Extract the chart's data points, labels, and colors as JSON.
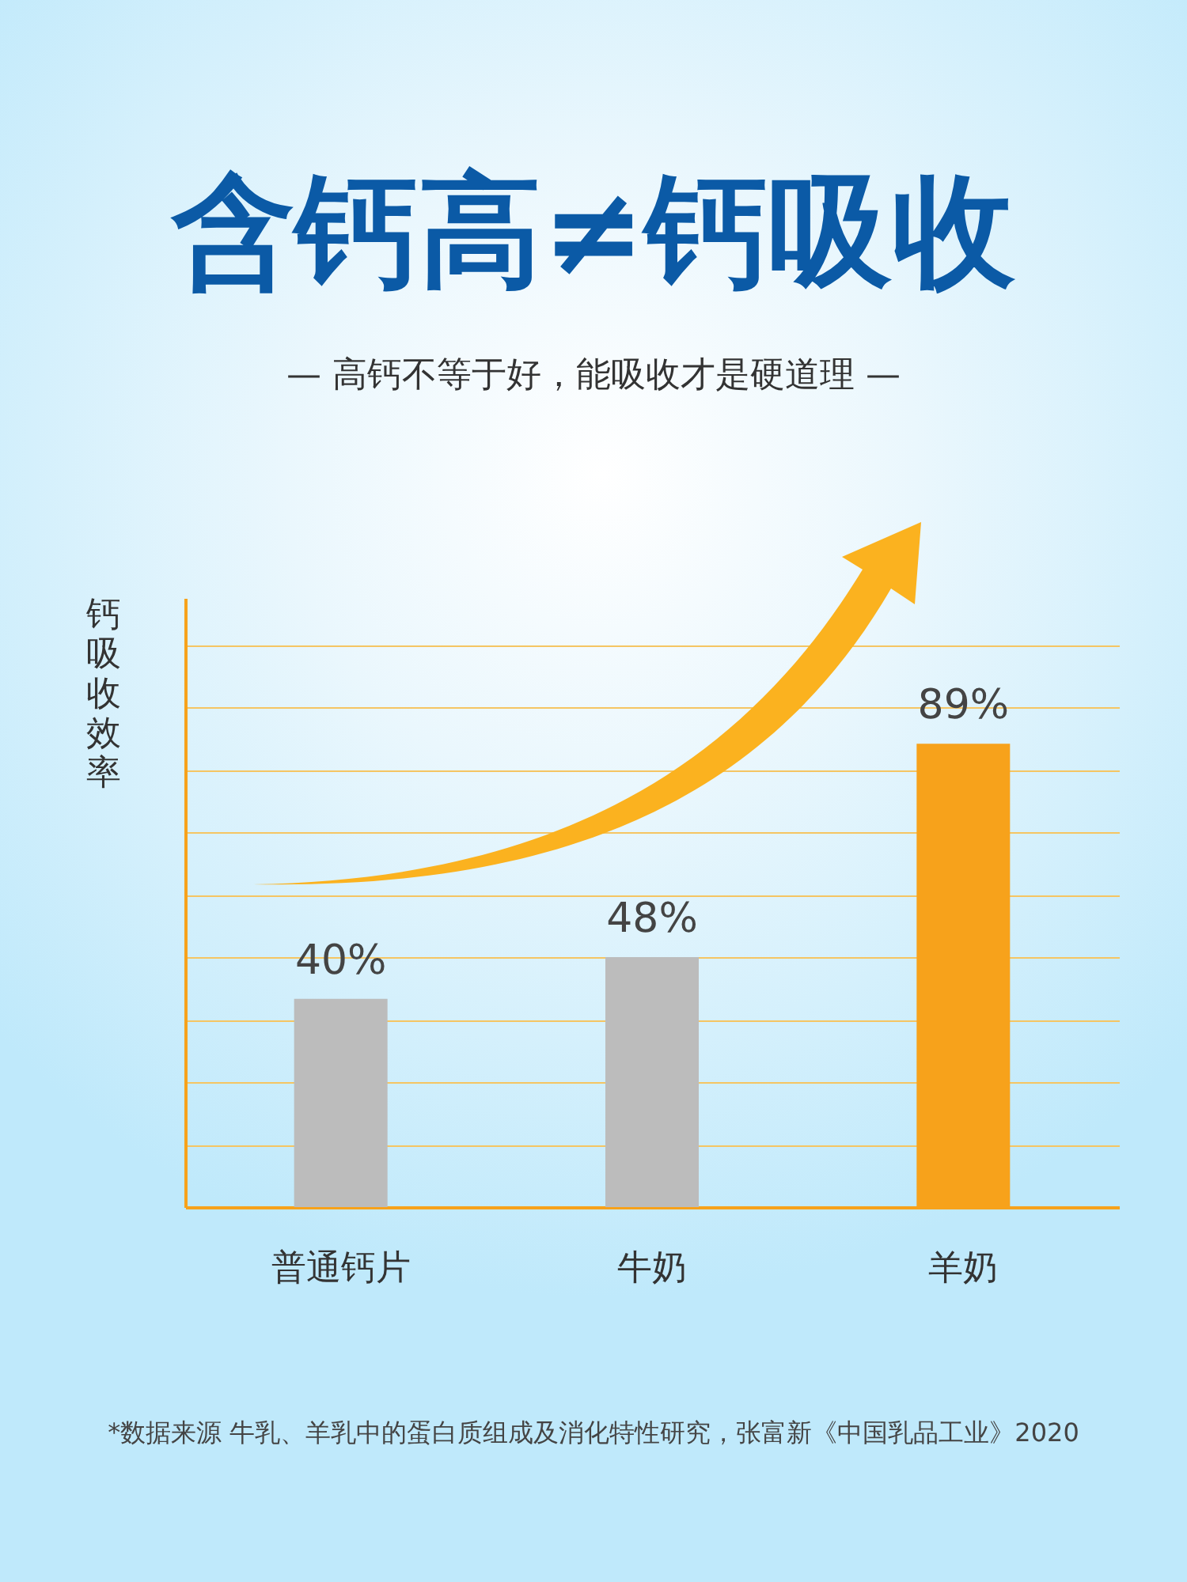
{
  "chart_data": {
    "type": "bar",
    "title": "含钙高≠钙吸收",
    "subtitle": "— 高钙不等于好，能吸收才是硬道理 —",
    "ylabel": "钙吸收效率",
    "categories": [
      "普通钙片",
      "牛奶",
      "羊奶"
    ],
    "values": [
      40,
      48,
      89
    ],
    "colors": [
      "#bcbcbc",
      "#bcbcbc",
      "#f7a21b"
    ],
    "value_labels": [
      "40%",
      "48%",
      "89%"
    ],
    "ylim": [
      0,
      117
    ],
    "yticks": [
      {
        "value": 0,
        "label": null
      },
      {
        "value": 12,
        "label": null
      },
      {
        "value": 24,
        "label": null
      },
      {
        "value": 36,
        "label": null
      },
      {
        "value": 48,
        "label": null
      },
      {
        "value": 60,
        "label": null
      },
      {
        "value": 72,
        "label": null
      },
      {
        "value": 84,
        "label": null
      },
      {
        "value": 96,
        "label": null
      },
      {
        "value": 108,
        "label": null
      }
    ],
    "grid": "y",
    "tick_labels": "x",
    "legend": false,
    "annotations": [
      "*数据来源 牛乳、羊乳中的蛋白质组成及消化特性研究，张富新《中国乳品工业》2020"
    ]
  }
}
